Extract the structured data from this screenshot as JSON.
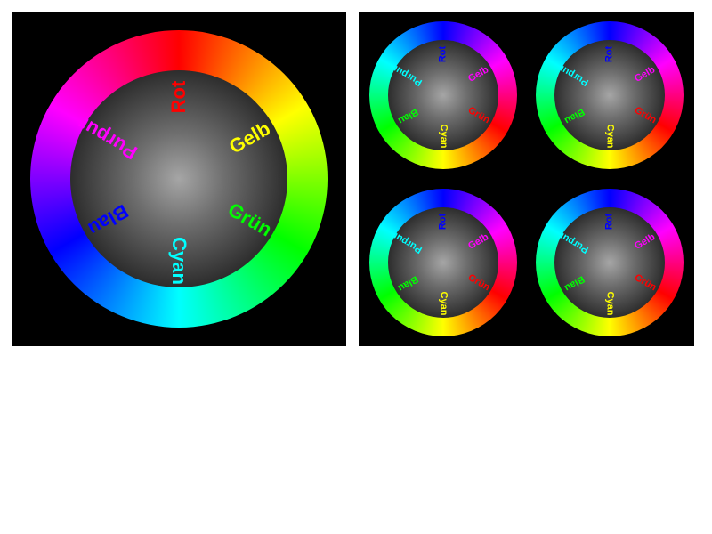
{
  "large_wheel": {
    "gradient": [
      "#ff0000",
      "#ffff00",
      "#00ff00",
      "#00ffff",
      "#0000ff",
      "#ff00ff",
      "#ff0000"
    ],
    "labels": [
      {
        "text": "Rot",
        "color": "#ff0000"
      },
      {
        "text": "Gelb",
        "color": "#ffff00"
      },
      {
        "text": "Grün",
        "color": "#00ff00"
      },
      {
        "text": "Cyan",
        "color": "#00ffff"
      },
      {
        "text": "Blau",
        "color": "#0000ff"
      },
      {
        "text": "Purpur",
        "color": "#ff00ff"
      }
    ]
  },
  "small_wheels": [
    {
      "gradient": [
        "#0000ff",
        "#ff00ff",
        "#ff0000",
        "#ffff00",
        "#00ff00",
        "#00ffff",
        "#0000ff"
      ],
      "labels": [
        {
          "text": "Rot",
          "color": "#0000ff"
        },
        {
          "text": "Gelb",
          "color": "#ff00ff"
        },
        {
          "text": "Grün",
          "color": "#ff0000"
        },
        {
          "text": "Cyan",
          "color": "#ffff00"
        },
        {
          "text": "Blau",
          "color": "#00ff00"
        },
        {
          "text": "Purpur",
          "color": "#00ffff"
        }
      ]
    },
    {
      "gradient": [
        "#0000ff",
        "#ff00ff",
        "#ff0000",
        "#ffff00",
        "#00ff00",
        "#00ffff",
        "#0000ff"
      ],
      "labels": [
        {
          "text": "Rot",
          "color": "#0000ff"
        },
        {
          "text": "Gelb",
          "color": "#ff00ff"
        },
        {
          "text": "Grün",
          "color": "#ff0000"
        },
        {
          "text": "Cyan",
          "color": "#ffff00"
        },
        {
          "text": "Blau",
          "color": "#00ff00"
        },
        {
          "text": "Purpur",
          "color": "#00ffff"
        }
      ]
    },
    {
      "gradient": [
        "#0000ff",
        "#ff00ff",
        "#ff0000",
        "#ffff00",
        "#00ff00",
        "#00ffff",
        "#0000ff"
      ],
      "labels": [
        {
          "text": "Rot",
          "color": "#0000ff"
        },
        {
          "text": "Gelb",
          "color": "#ff00ff"
        },
        {
          "text": "Grün",
          "color": "#ff0000"
        },
        {
          "text": "Cyan",
          "color": "#ffff00"
        },
        {
          "text": "Blau",
          "color": "#00ff00"
        },
        {
          "text": "Purpur",
          "color": "#00ffff"
        }
      ]
    },
    {
      "gradient": [
        "#0000ff",
        "#ff00ff",
        "#ff0000",
        "#ffff00",
        "#00ff00",
        "#00ffff",
        "#0000ff"
      ],
      "labels": [
        {
          "text": "Rot",
          "color": "#0000ff"
        },
        {
          "text": "Gelb",
          "color": "#ff00ff"
        },
        {
          "text": "Grün",
          "color": "#ff0000"
        },
        {
          "text": "Cyan",
          "color": "#ffff00"
        },
        {
          "text": "Blau",
          "color": "#00ff00"
        },
        {
          "text": "Purpur",
          "color": "#00ffff"
        }
      ]
    }
  ]
}
